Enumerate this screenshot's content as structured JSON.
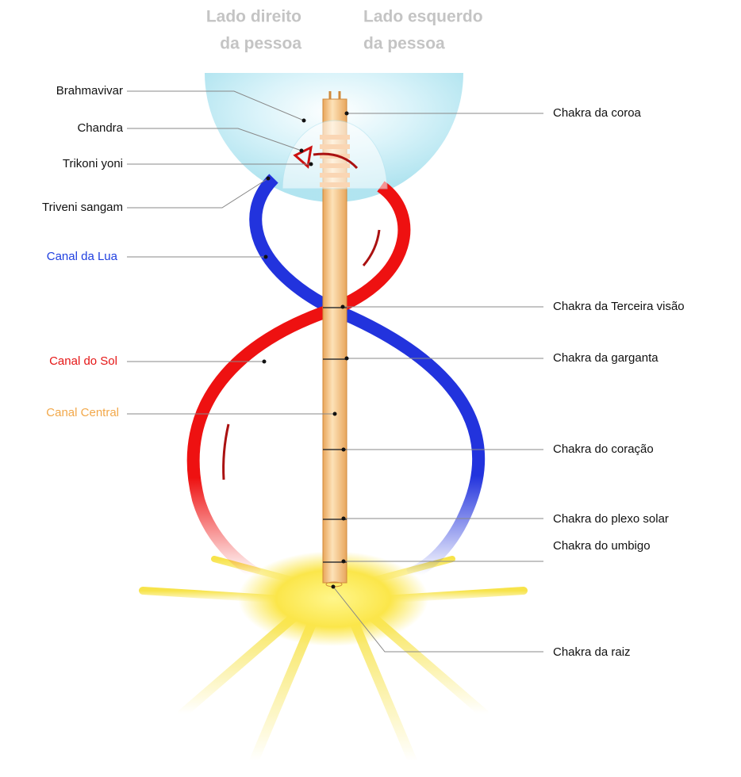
{
  "header": {
    "right_side": [
      "Lado direito",
      "da pessoa"
    ],
    "left_side": [
      "Lado esquerdo",
      "da pessoa"
    ]
  },
  "left_labels": [
    "Brahmavivar",
    "Chandra",
    "Trikoni yoni",
    "Triveni sangam",
    "Canal da Lua",
    "Canal do Sol",
    "Canal Central"
  ],
  "right_labels": [
    "Chakra da coroa",
    "Chakra da Terceira visão",
    "Chakra da garganta",
    "Chakra do coração",
    "Chakra do plexo solar",
    "Chakra do umbigo",
    "Chakra da raiz"
  ]
}
